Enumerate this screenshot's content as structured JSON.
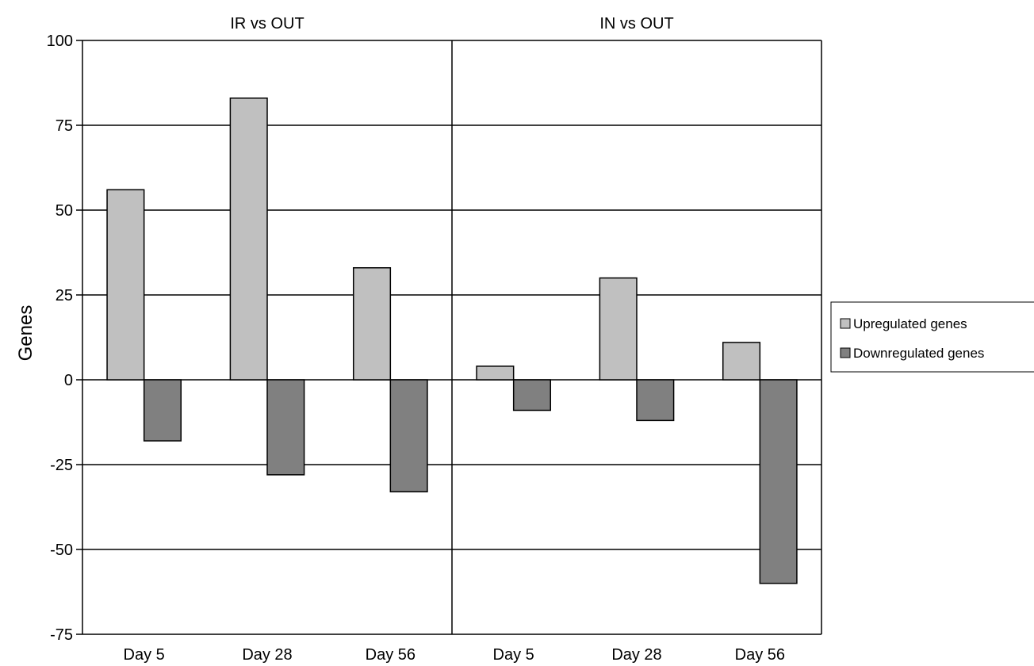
{
  "chart_data": {
    "type": "bar",
    "ylabel": "Genes",
    "ylim": [
      -75,
      100
    ],
    "yticks": [
      100,
      75,
      50,
      25,
      0,
      -25,
      -50,
      -75
    ],
    "grid": true,
    "legend_position": "right",
    "categories": [
      "Day 5",
      "Day 28",
      "Day 56"
    ],
    "panels": [
      {
        "title": "IR vs OUT",
        "series": [
          {
            "name": "Upregulated genes",
            "values": [
              56,
              83,
              33
            ]
          },
          {
            "name": "Downregulated genes",
            "values": [
              -18,
              -28,
              -33
            ]
          }
        ]
      },
      {
        "title": "IN vs OUT",
        "series": [
          {
            "name": "Upregulated genes",
            "values": [
              4,
              30,
              11
            ]
          },
          {
            "name": "Downregulated genes",
            "values": [
              -9,
              -12,
              -60
            ]
          }
        ]
      }
    ],
    "legend": [
      {
        "label": "Upregulated genes",
        "color": "#c0c0c0"
      },
      {
        "label": "Downregulated genes",
        "color": "#808080"
      }
    ],
    "colors": {
      "up": "#c0c0c0",
      "down": "#808080",
      "axis": "#000000"
    }
  }
}
